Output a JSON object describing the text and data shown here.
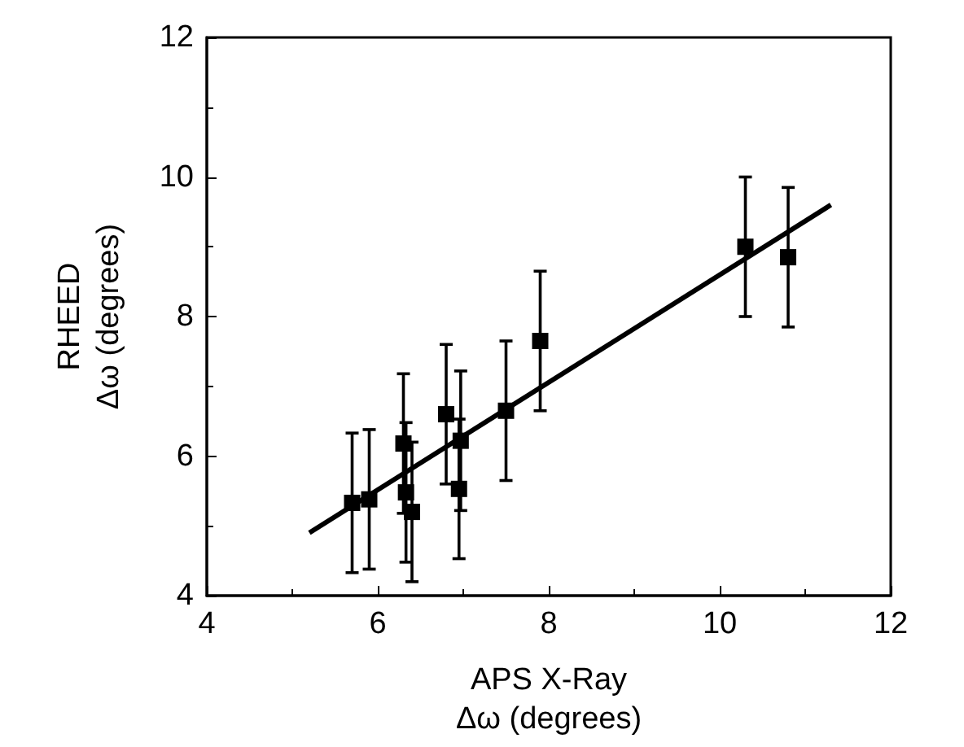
{
  "chart_data": {
    "type": "scatter",
    "xlabel": "APS X-Ray\nΔω (degrees)",
    "ylabel": "RHEED\nΔω (degrees)",
    "xlim": [
      4,
      12
    ],
    "xticks": [
      4,
      6,
      8,
      10,
      12
    ],
    "ylim": [
      4,
      12
    ],
    "yticks": [
      4,
      6,
      8,
      10,
      12
    ],
    "grid": false,
    "marker": "square",
    "series": [
      {
        "color": "#000000",
        "x": [
          5.7,
          5.9,
          6.3,
          6.33,
          6.4,
          6.8,
          6.95,
          6.97,
          7.5,
          7.9,
          10.3,
          10.8
        ],
        "values": [
          5.33,
          5.38,
          6.18,
          5.48,
          5.2,
          6.6,
          5.53,
          6.22,
          6.65,
          7.65,
          9.0,
          8.85
        ],
        "errors": [
          1,
          1,
          1,
          1,
          1,
          1,
          1,
          1,
          1,
          1,
          1,
          1
        ]
      },
      {
        "type": "line",
        "color": "#000000",
        "x": [
          5.2,
          11.3
        ],
        "values": [
          4.9,
          9.6
        ],
        "marker": "none",
        "line_style": "solid"
      }
    ]
  }
}
